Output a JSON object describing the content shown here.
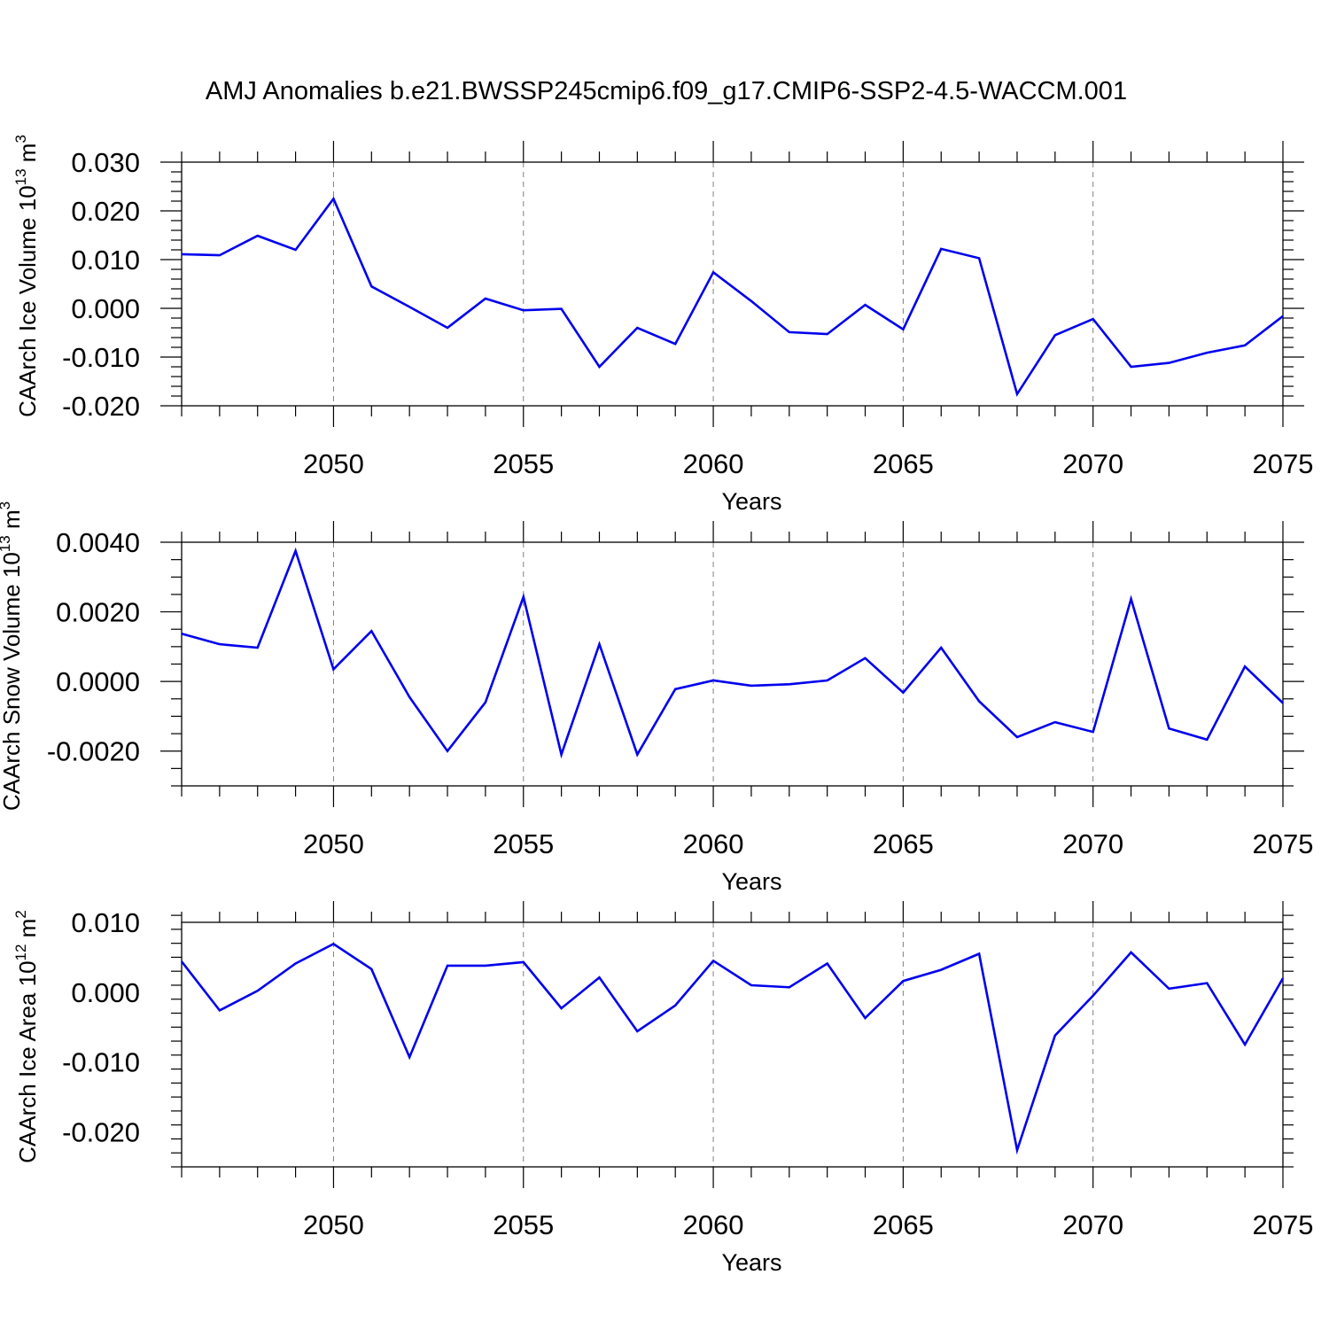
{
  "title": "AMJ Anomalies b.e21.BWSSP245cmip6.f09_g17.CMIP6-SSP2-4.5-WACCM.001",
  "colors": {
    "series": "#0000ee",
    "axis": "#000000",
    "grid": "#808080"
  },
  "chart_data": [
    {
      "type": "line",
      "ylabel": "CAArch Ice Volume 10",
      "ylabel_sup1": "13",
      "ylabel_mid": " m",
      "ylabel_sup2": "3",
      "xlabel": "Years",
      "xlim": [
        2046,
        2075
      ],
      "ylim": [
        -0.02,
        0.03
      ],
      "y_major_ticks": [
        -0.02,
        -0.01,
        0.0,
        0.01,
        0.02,
        0.03
      ],
      "y_tick_labels": [
        "-0.020",
        "-0.010",
        "0.000",
        "0.010",
        "0.020",
        "0.030"
      ],
      "y_minor_step": 0.002,
      "x_major_ticks": [
        2050,
        2055,
        2060,
        2065,
        2070,
        2075
      ],
      "x_tick_labels": [
        "2050",
        "2055",
        "2060",
        "2065",
        "2070",
        "2075"
      ],
      "grid": "vertical dashed at major x ticks",
      "x": [
        2046,
        2047,
        2048,
        2049,
        2050,
        2051,
        2052,
        2053,
        2054,
        2055,
        2056,
        2057,
        2058,
        2059,
        2060,
        2061,
        2062,
        2063,
        2064,
        2065,
        2066,
        2067,
        2068,
        2069,
        2070,
        2071,
        2072,
        2073,
        2074,
        2075
      ],
      "y": [
        0.0111,
        0.0109,
        0.0149,
        0.012,
        0.0225,
        0.0045,
        0.0003,
        -0.004,
        0.002,
        -0.0004,
        -0.0001,
        -0.012,
        -0.004,
        -0.0073,
        0.0074,
        0.0015,
        -0.0049,
        -0.0053,
        0.0007,
        -0.0043,
        0.0122,
        0.0103,
        -0.0176,
        -0.0055,
        -0.0022,
        -0.012,
        -0.0112,
        -0.0091,
        -0.0076,
        -0.0016
      ]
    },
    {
      "type": "line",
      "ylabel": "CAArch Snow Volume 10",
      "ylabel_sup1": "13",
      "ylabel_mid": " m",
      "ylabel_sup2": "3",
      "xlabel": "Years",
      "xlim": [
        2046,
        2075
      ],
      "ylim": [
        -0.003,
        0.004
      ],
      "y_major_ticks": [
        -0.002,
        0.0,
        0.002,
        0.004
      ],
      "y_tick_labels": [
        "-0.0020",
        "0.0000",
        "0.0020",
        "0.0040"
      ],
      "y_minor_step": 0.0005,
      "x_major_ticks": [
        2050,
        2055,
        2060,
        2065,
        2070,
        2075
      ],
      "x_tick_labels": [
        "2050",
        "2055",
        "2060",
        "2065",
        "2070",
        "2075"
      ],
      "grid": "vertical dashed at major x ticks",
      "x": [
        2046,
        2047,
        2048,
        2049,
        2050,
        2051,
        2052,
        2053,
        2054,
        2055,
        2056,
        2057,
        2058,
        2059,
        2060,
        2061,
        2062,
        2063,
        2064,
        2065,
        2066,
        2067,
        2068,
        2069,
        2070,
        2071,
        2072,
        2073,
        2074,
        2075
      ],
      "y": [
        0.00137,
        0.00107,
        0.00097,
        0.00375,
        0.00035,
        0.00145,
        -0.00045,
        -0.002,
        -0.0006,
        0.00243,
        -0.0021,
        0.00107,
        -0.0021,
        -0.00022,
        3e-05,
        -0.00012,
        -8e-05,
        3e-05,
        0.00067,
        -0.00032,
        0.00097,
        -0.00057,
        -0.0016,
        -0.00117,
        -0.00145,
        0.00237,
        -0.00135,
        -0.00167,
        0.00043,
        -0.00062
      ]
    },
    {
      "type": "line",
      "ylabel": "CAArch Ice Area 10",
      "ylabel_sup1": "12",
      "ylabel_mid": " m",
      "ylabel_sup2": "2",
      "xlabel": "Years",
      "xlim": [
        2046,
        2075
      ],
      "ylim": [
        -0.025,
        0.01
      ],
      "y_major_ticks": [
        -0.02,
        -0.01,
        0.0,
        0.01
      ],
      "y_tick_labels": [
        "-0.020",
        "-0.010",
        "0.000",
        "0.010"
      ],
      "y_minor_step": 0.002,
      "x_major_ticks": [
        2050,
        2055,
        2060,
        2065,
        2070,
        2075
      ],
      "x_tick_labels": [
        "2050",
        "2055",
        "2060",
        "2065",
        "2070",
        "2075"
      ],
      "grid": "vertical dashed at major x ticks",
      "x": [
        2046,
        2047,
        2048,
        2049,
        2050,
        2051,
        2052,
        2053,
        2054,
        2055,
        2056,
        2057,
        2058,
        2059,
        2060,
        2061,
        2062,
        2063,
        2064,
        2065,
        2066,
        2067,
        2068,
        2069,
        2070,
        2071,
        2072,
        2073,
        2074,
        2075
      ],
      "y": [
        0.0044,
        -0.0026,
        0.0002,
        0.0041,
        0.0069,
        0.0033,
        -0.0093,
        0.0038,
        0.0038,
        0.0043,
        -0.0023,
        0.0021,
        -0.0056,
        -0.0019,
        0.0045,
        0.001,
        0.0007,
        0.0041,
        -0.0037,
        0.0016,
        0.0032,
        0.0055,
        -0.0226,
        -0.0062,
        -0.0005,
        0.0057,
        0.0005,
        0.0013,
        -0.0075,
        0.002
      ]
    }
  ]
}
